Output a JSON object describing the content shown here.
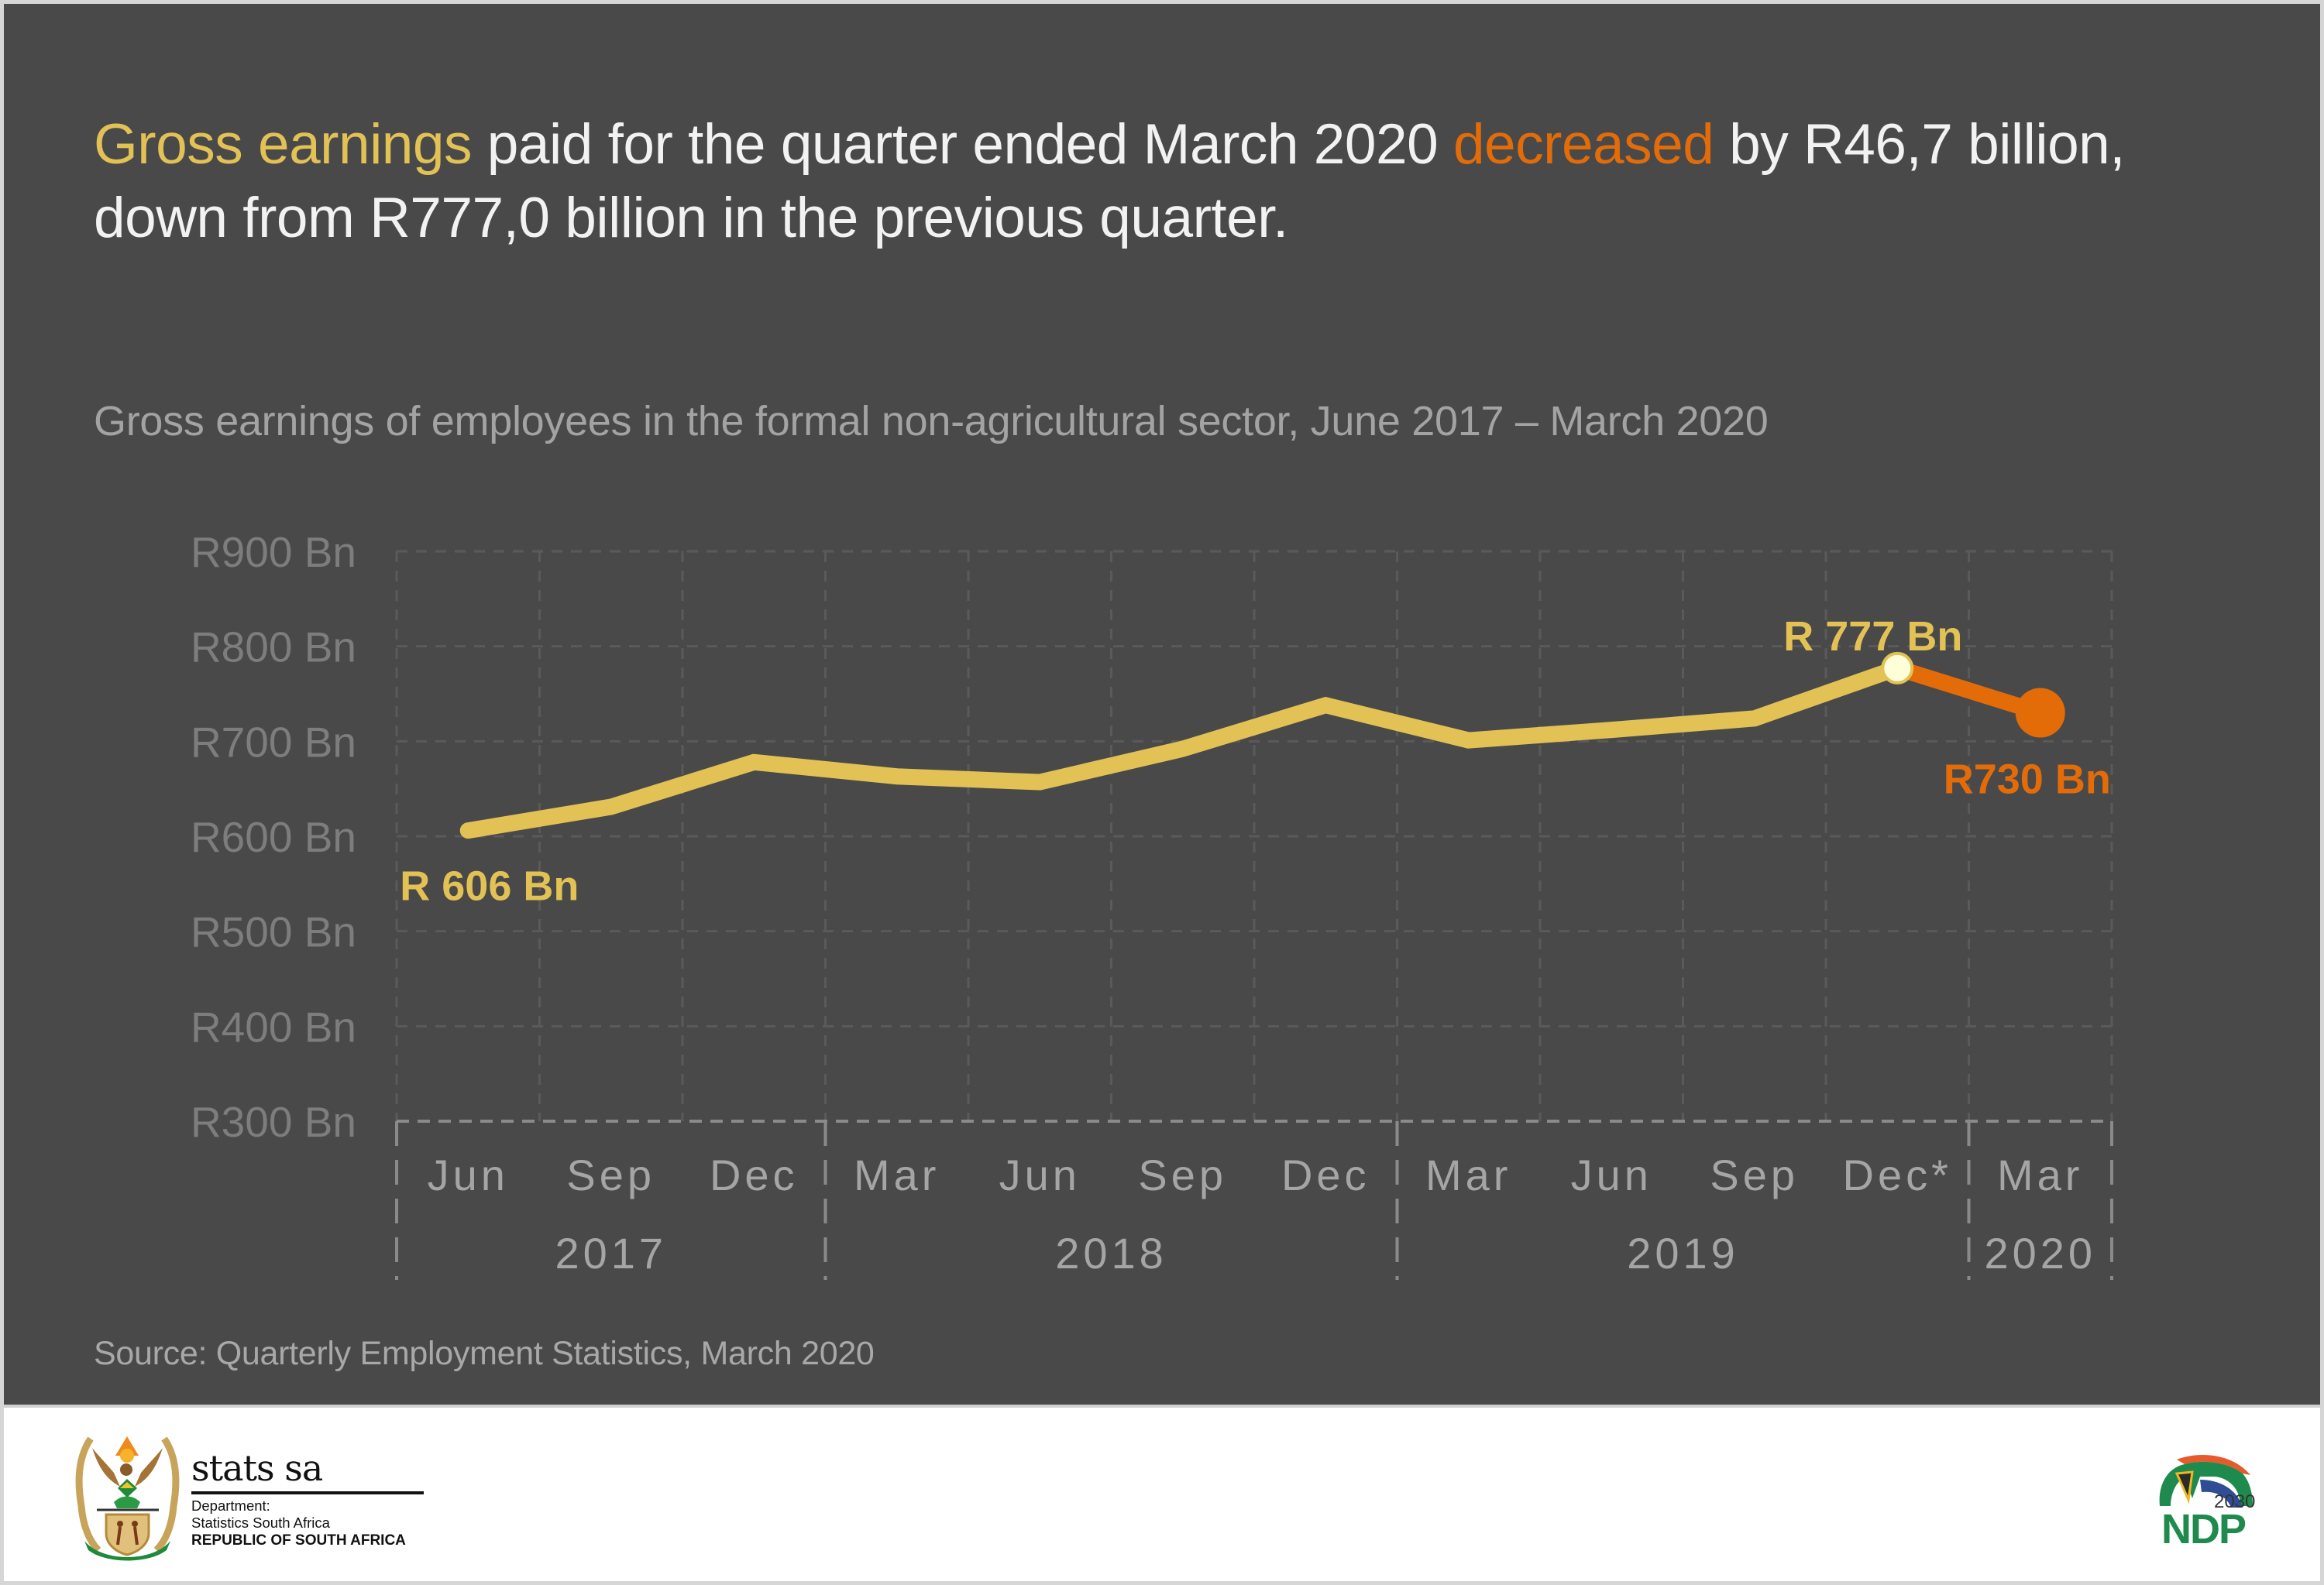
{
  "headline": {
    "part1_highlight": "Gross earnings",
    "part2": " paid for the quarter ended March 2020 ",
    "part3_highlight": "decreased",
    "part4": " by R46,7 billion,",
    "line2": "down from R777,0 billion in the previous quarter."
  },
  "colors": {
    "background": "#494949",
    "yellow": "#e2c155",
    "orange": "#e36c09",
    "marker_fill": "#fefed8",
    "grid": "#5a5a5a",
    "axis_box": "#8a8a8a"
  },
  "chart_data": {
    "type": "line",
    "title": "Gross earnings of employees in the formal non-agricultural sector, June 2017 – March 2020",
    "xlabel": "",
    "ylabel": "",
    "ylim": [
      300,
      900
    ],
    "y_ticks": [
      900,
      800,
      700,
      600,
      500,
      400,
      300
    ],
    "y_tick_labels": [
      "R900 Bn",
      "R800 Bn",
      "R700 Bn",
      "R600 Bn",
      "R500 Bn",
      "R400 Bn",
      "R300 Bn"
    ],
    "grid": true,
    "categories": [
      "Jun",
      "Sep",
      "Dec",
      "Mar",
      "Jun",
      "Sep",
      "Dec",
      "Mar",
      "Jun",
      "Sep",
      "Dec*",
      "Mar"
    ],
    "year_groups": [
      {
        "label": "2017",
        "count": 3
      },
      {
        "label": "2018",
        "count": 4
      },
      {
        "label": "2019",
        "count": 4
      },
      {
        "label": "2020",
        "count": 1
      }
    ],
    "series": [
      {
        "name": "Gross earnings (R billion)",
        "values": [
          606,
          631,
          678,
          663,
          657,
          692,
          738,
          701,
          712,
          724,
          777,
          730
        ]
      }
    ],
    "annotations": [
      {
        "index": 0,
        "text": "R 606 Bn",
        "color": "yellow"
      },
      {
        "index": 10,
        "text": "R 777 Bn",
        "color": "yellow"
      },
      {
        "index": 11,
        "text": "R730 Bn",
        "color": "orange"
      }
    ]
  },
  "source": "Source: Quarterly Employment Statistics, March 2020",
  "footer": {
    "logo_name": "stats sa",
    "dept_line1": "Department:",
    "dept_line2": "Statistics South Africa",
    "dept_line3": "REPUBLIC OF SOUTH AFRICA",
    "coat_of_arms_motto": "!KE E: /XARRA //KE",
    "ndp_year": "2030",
    "ndp_label": "NDP"
  }
}
